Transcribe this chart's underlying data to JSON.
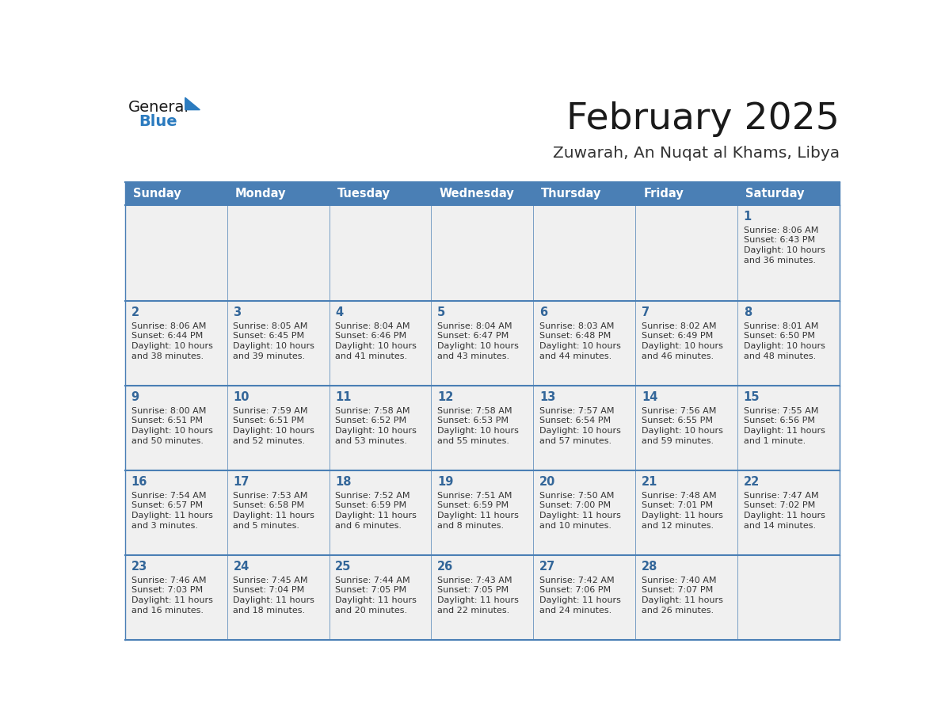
{
  "title": "February 2025",
  "subtitle": "Zuwarah, An Nuqat al Khams, Libya",
  "header_bg_color": "#4a7fb5",
  "header_text_color": "#ffffff",
  "cell_bg_color": "#f0f0f0",
  "day_names": [
    "Sunday",
    "Monday",
    "Tuesday",
    "Wednesday",
    "Thursday",
    "Friday",
    "Saturday"
  ],
  "title_color": "#1a1a1a",
  "subtitle_color": "#333333",
  "date_color": "#336699",
  "text_color": "#333333",
  "line_color": "#4a7fb5",
  "logo_text_color": "#1a1a1a",
  "logo_blue_color": "#2b7bbf",
  "calendar": [
    [
      null,
      null,
      null,
      null,
      null,
      null,
      1
    ],
    [
      2,
      3,
      4,
      5,
      6,
      7,
      8
    ],
    [
      9,
      10,
      11,
      12,
      13,
      14,
      15
    ],
    [
      16,
      17,
      18,
      19,
      20,
      21,
      22
    ],
    [
      23,
      24,
      25,
      26,
      27,
      28,
      null
    ]
  ],
  "sunrise": {
    "1": "8:06 AM",
    "2": "8:06 AM",
    "3": "8:05 AM",
    "4": "8:04 AM",
    "5": "8:04 AM",
    "6": "8:03 AM",
    "7": "8:02 AM",
    "8": "8:01 AM",
    "9": "8:00 AM",
    "10": "7:59 AM",
    "11": "7:58 AM",
    "12": "7:58 AM",
    "13": "7:57 AM",
    "14": "7:56 AM",
    "15": "7:55 AM",
    "16": "7:54 AM",
    "17": "7:53 AM",
    "18": "7:52 AM",
    "19": "7:51 AM",
    "20": "7:50 AM",
    "21": "7:48 AM",
    "22": "7:47 AM",
    "23": "7:46 AM",
    "24": "7:45 AM",
    "25": "7:44 AM",
    "26": "7:43 AM",
    "27": "7:42 AM",
    "28": "7:40 AM"
  },
  "sunset": {
    "1": "6:43 PM",
    "2": "6:44 PM",
    "3": "6:45 PM",
    "4": "6:46 PM",
    "5": "6:47 PM",
    "6": "6:48 PM",
    "7": "6:49 PM",
    "8": "6:50 PM",
    "9": "6:51 PM",
    "10": "6:51 PM",
    "11": "6:52 PM",
    "12": "6:53 PM",
    "13": "6:54 PM",
    "14": "6:55 PM",
    "15": "6:56 PM",
    "16": "6:57 PM",
    "17": "6:58 PM",
    "18": "6:59 PM",
    "19": "6:59 PM",
    "20": "7:00 PM",
    "21": "7:01 PM",
    "22": "7:02 PM",
    "23": "7:03 PM",
    "24": "7:04 PM",
    "25": "7:05 PM",
    "26": "7:05 PM",
    "27": "7:06 PM",
    "28": "7:07 PM"
  },
  "daylight": {
    "1": [
      "10 hours",
      "and 36 minutes."
    ],
    "2": [
      "10 hours",
      "and 38 minutes."
    ],
    "3": [
      "10 hours",
      "and 39 minutes."
    ],
    "4": [
      "10 hours",
      "and 41 minutes."
    ],
    "5": [
      "10 hours",
      "and 43 minutes."
    ],
    "6": [
      "10 hours",
      "and 44 minutes."
    ],
    "7": [
      "10 hours",
      "and 46 minutes."
    ],
    "8": [
      "10 hours",
      "and 48 minutes."
    ],
    "9": [
      "10 hours",
      "and 50 minutes."
    ],
    "10": [
      "10 hours",
      "and 52 minutes."
    ],
    "11": [
      "10 hours",
      "and 53 minutes."
    ],
    "12": [
      "10 hours",
      "and 55 minutes."
    ],
    "13": [
      "10 hours",
      "and 57 minutes."
    ],
    "14": [
      "10 hours",
      "and 59 minutes."
    ],
    "15": [
      "11 hours",
      "and 1 minute."
    ],
    "16": [
      "11 hours",
      "and 3 minutes."
    ],
    "17": [
      "11 hours",
      "and 5 minutes."
    ],
    "18": [
      "11 hours",
      "and 6 minutes."
    ],
    "19": [
      "11 hours",
      "and 8 minutes."
    ],
    "20": [
      "11 hours",
      "and 10 minutes."
    ],
    "21": [
      "11 hours",
      "and 12 minutes."
    ],
    "22": [
      "11 hours",
      "and 14 minutes."
    ],
    "23": [
      "11 hours",
      "and 16 minutes."
    ],
    "24": [
      "11 hours",
      "and 18 minutes."
    ],
    "25": [
      "11 hours",
      "and 20 minutes."
    ],
    "26": [
      "11 hours",
      "and 22 minutes."
    ],
    "27": [
      "11 hours",
      "and 24 minutes."
    ],
    "28": [
      "11 hours",
      "and 26 minutes."
    ]
  }
}
